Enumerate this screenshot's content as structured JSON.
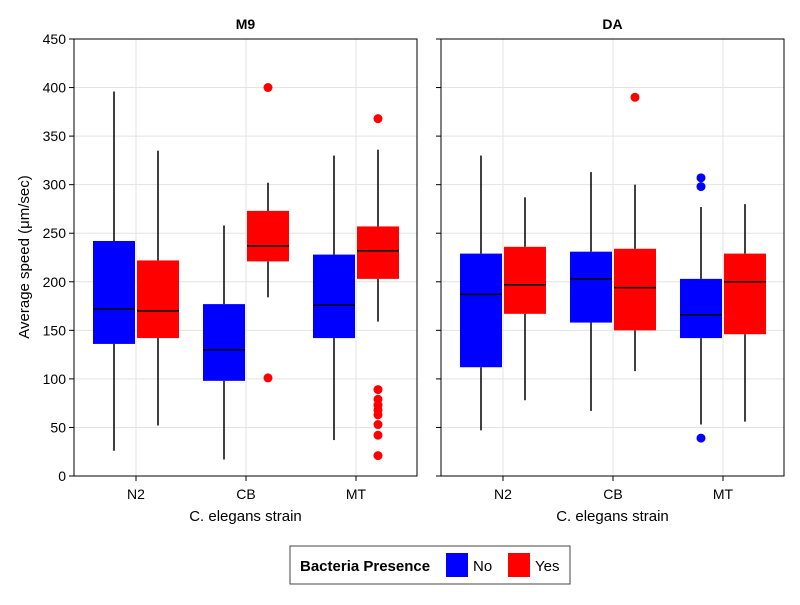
{
  "chart_data": {
    "type": "box",
    "facets": [
      "M9",
      "DA"
    ],
    "categories": [
      "N2",
      "CB",
      "MT"
    ],
    "xlabel": "C. elegans strain",
    "ylabel": "Average speed (μm/sec)",
    "ylim": [
      0,
      450
    ],
    "yticks": [
      0,
      50,
      100,
      150,
      200,
      250,
      300,
      350,
      400,
      450
    ],
    "grid": true,
    "legend": {
      "title": "Bacteria Presence",
      "position": "bottom",
      "entries": [
        {
          "label": "No",
          "color": "#0000ff"
        },
        {
          "label": "Yes",
          "color": "#ff0000"
        }
      ]
    },
    "series": [
      {
        "facet": "M9",
        "boxes": [
          {
            "category": "N2",
            "group": "No",
            "whisker_low": 26,
            "q1": 136,
            "median": 172,
            "q3": 242,
            "whisker_high": 396,
            "outliers": []
          },
          {
            "category": "N2",
            "group": "Yes",
            "whisker_low": 52,
            "q1": 142,
            "median": 170,
            "q3": 222,
            "whisker_high": 335,
            "outliers": []
          },
          {
            "category": "CB",
            "group": "No",
            "whisker_low": 17,
            "q1": 98,
            "median": 130,
            "q3": 177,
            "whisker_high": 258,
            "outliers": []
          },
          {
            "category": "CB",
            "group": "Yes",
            "whisker_low": 184,
            "q1": 221,
            "median": 237,
            "q3": 273,
            "whisker_high": 302,
            "outliers": [
              400,
              101
            ]
          },
          {
            "category": "MT",
            "group": "No",
            "whisker_low": 37,
            "q1": 142,
            "median": 176,
            "q3": 228,
            "whisker_high": 330,
            "outliers": []
          },
          {
            "category": "MT",
            "group": "Yes",
            "whisker_low": 159,
            "q1": 203,
            "median": 232,
            "q3": 257,
            "whisker_high": 336,
            "outliers": [
              368,
              89,
              79,
              73,
              68,
              63,
              53,
              42,
              21
            ]
          }
        ]
      },
      {
        "facet": "DA",
        "boxes": [
          {
            "category": "N2",
            "group": "No",
            "whisker_low": 47,
            "q1": 112,
            "median": 187,
            "q3": 229,
            "whisker_high": 330,
            "outliers": []
          },
          {
            "category": "N2",
            "group": "Yes",
            "whisker_low": 78,
            "q1": 167,
            "median": 197,
            "q3": 236,
            "whisker_high": 287,
            "outliers": []
          },
          {
            "category": "CB",
            "group": "No",
            "whisker_low": 67,
            "q1": 158,
            "median": 203,
            "q3": 231,
            "whisker_high": 313,
            "outliers": []
          },
          {
            "category": "CB",
            "group": "Yes",
            "whisker_low": 108,
            "q1": 150,
            "median": 194,
            "q3": 234,
            "whisker_high": 300,
            "outliers": [
              390
            ]
          },
          {
            "category": "MT",
            "group": "No",
            "whisker_low": 53,
            "q1": 142,
            "median": 166,
            "q3": 203,
            "whisker_high": 277,
            "outliers": [
              307,
              298,
              39
            ]
          },
          {
            "category": "MT",
            "group": "Yes",
            "whisker_low": 56,
            "q1": 146,
            "median": 200,
            "q3": 229,
            "whisker_high": 280,
            "outliers": []
          }
        ]
      }
    ]
  }
}
